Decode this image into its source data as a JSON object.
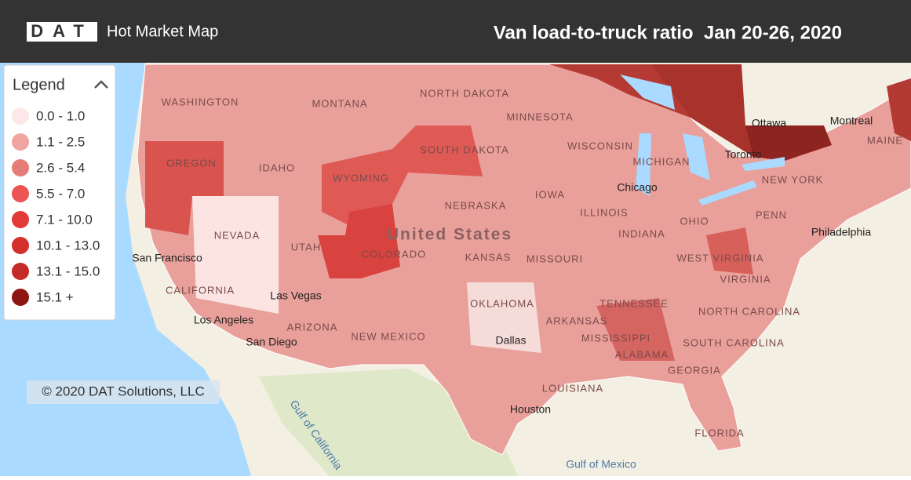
{
  "header": {
    "logo": "DAT",
    "app_title": "Hot Market Map",
    "title": "Van load-to-truck ratio  Jan 20-26, 2020"
  },
  "legend": {
    "title": "Legend",
    "items": [
      {
        "label": "0.0 - 1.0",
        "color": "#fce8e8"
      },
      {
        "label": "1.1 - 2.5",
        "color": "#f0a3a0"
      },
      {
        "label": "2.6 - 5.4",
        "color": "#e57c78"
      },
      {
        "label": "5.5 - 7.0",
        "color": "#ec5553"
      },
      {
        "label": "7.1 - 10.0",
        "color": "#e23a36"
      },
      {
        "label": "10.1 - 13.0",
        "color": "#d4302c"
      },
      {
        "label": "13.1 - 15.0",
        "color": "#c42a26"
      },
      {
        "label": "15.1 +",
        "color": "#8e1612"
      }
    ]
  },
  "map": {
    "labels": [
      "WASHINGTON",
      "MONTANA",
      "NORTH DAKOTA",
      "MINNESOTA",
      "OREGON",
      "IDAHO",
      "SOUTH DAKOTA",
      "WYOMING",
      "WISCONSIN",
      "MICHIGAN",
      "NEBRASKA",
      "IOWA",
      "NEVADA",
      "UTAH",
      "COLORADO",
      "United States",
      "KANSAS",
      "ILLINOIS",
      "INDIANA",
      "OHIO",
      "CALIFORNIA",
      "MISSOURI",
      "Las Vegas",
      "OKLAHOMA",
      "Los Angeles",
      "ARIZONA",
      "NEW MEXICO",
      "San Diego",
      "ARKANSAS",
      "TENNESSEE",
      "MISSISSIPPI",
      "ALABAMA",
      "GEORGIA",
      "LOUISIANA",
      "FLORIDA",
      "Houston",
      "Dallas",
      "San Francisco",
      "Chicago",
      "Toronto",
      "Ottawa",
      "Montreal",
      "MAINE",
      "NEW YORK",
      "PENN",
      "Philadelphia",
      "WEST VIRGINIA",
      "VIRGINIA",
      "NORTH CAROLINA",
      "SOUTH CAROLINA",
      "Gulf of California",
      "Gulf of Mexico"
    ]
  },
  "copyright": "© 2020 DAT Solutions, LLC"
}
